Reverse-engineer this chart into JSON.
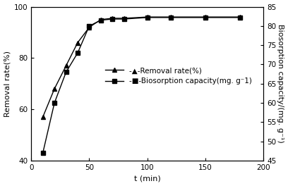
{
  "removal_rate_x": [
    10,
    20,
    30,
    40,
    50,
    60,
    70,
    80,
    100,
    120,
    150,
    180
  ],
  "removal_rate_y": [
    57,
    68,
    77,
    86,
    92,
    95,
    95.5,
    95.5,
    96,
    96,
    96,
    96
  ],
  "biosorption_x": [
    10,
    20,
    30,
    40,
    50,
    60,
    70,
    80,
    100,
    120,
    150,
    180
  ],
  "biosorption_y": [
    47,
    60,
    68,
    73,
    80,
    81.5,
    81.8,
    81.8,
    82.2,
    82.2,
    82.2,
    82.2
  ],
  "xlim": [
    0,
    200
  ],
  "ylim_left": [
    40,
    100
  ],
  "ylim_right": [
    45,
    85
  ],
  "yticks_left": [
    40,
    60,
    80,
    100
  ],
  "yticks_right": [
    45,
    50,
    55,
    60,
    65,
    70,
    75,
    80,
    85
  ],
  "xticks": [
    0,
    50,
    100,
    150,
    200
  ],
  "xlabel": "t (min)",
  "ylabel_left": "Removal rate(%)",
  "ylabel_right": "Biosorption capacity/(mg. g⁻¹)",
  "legend_removal": "-▲-Removal rate(%)",
  "legend_biosorption": "-■-Biosorption capacity(mg. g⁻1)",
  "line_color": "#000000",
  "bg_color": "#ffffff",
  "fontsize_axis": 8,
  "fontsize_tick": 7.5,
  "fontsize_legend": 7.5
}
